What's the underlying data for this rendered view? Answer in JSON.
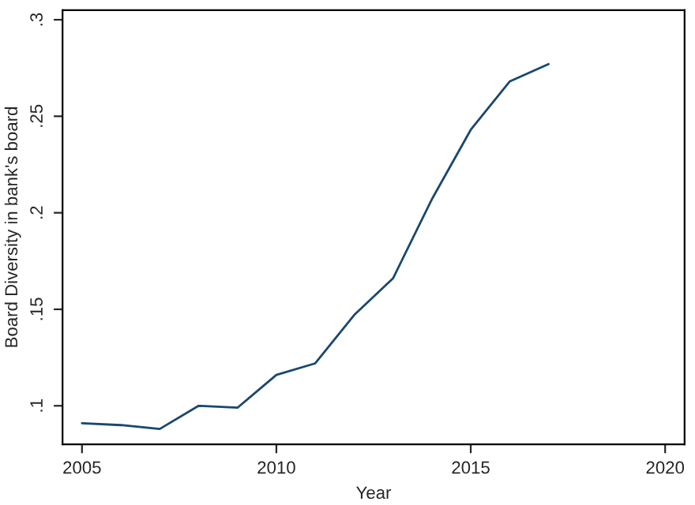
{
  "chart_data": {
    "type": "line",
    "xlabel": "Year",
    "ylabel": "Board Diversity in bank's board",
    "x": [
      2005,
      2006,
      2007,
      2008,
      2009,
      2010,
      2011,
      2012,
      2013,
      2014,
      2015,
      2016,
      2017
    ],
    "series": [
      {
        "color": "#1a476f",
        "values": [
          0.091,
          0.09,
          0.088,
          0.1,
          0.099,
          0.116,
          0.122,
          0.147,
          0.166,
          0.207,
          0.243,
          0.268,
          0.277
        ]
      }
    ],
    "xlim": [
      2004.5,
      2020.5
    ],
    "xticks": [
      2005,
      2010,
      2015,
      2020
    ],
    "ylim": [
      0.08,
      0.305
    ],
    "yticks": [
      {
        "value": 0.1,
        "label": ".1"
      },
      {
        "value": 0.15,
        "label": ".15"
      },
      {
        "value": 0.2,
        "label": ".2"
      },
      {
        "value": 0.25,
        "label": ".25"
      },
      {
        "value": 0.3,
        "label": ".3"
      }
    ],
    "grid": false,
    "legend": false
  }
}
